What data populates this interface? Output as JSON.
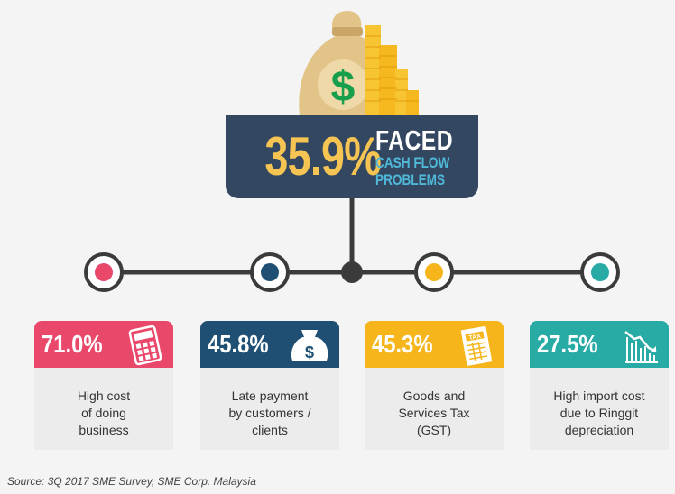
{
  "hero": {
    "percent": "35.9%",
    "title": "FACED",
    "subtitle_lines": [
      "CASH FLOW",
      "PROBLEMS"
    ]
  },
  "items": [
    {
      "percent": "71.0%",
      "lines": [
        "High cost",
        "of doing",
        "business"
      ],
      "color": "#e9486a",
      "icon": "calculator-icon"
    },
    {
      "percent": "45.8%",
      "lines": [
        "Late payment",
        "by customers /",
        "clients"
      ],
      "color": "#1f4f73",
      "icon": "money-bag-icon"
    },
    {
      "percent": "45.3%",
      "lines": [
        "Goods and",
        "Services Tax",
        "(GST)"
      ],
      "color": "#f5b51b",
      "icon": "tax-document-icon"
    },
    {
      "percent": "27.5%",
      "lines": [
        "High import cost",
        "due to Ringgit",
        "depreciation"
      ],
      "color": "#28aaa5",
      "icon": "declining-chart-icon"
    }
  ],
  "colors": {
    "navy": "#344760",
    "bag": "#e3c488",
    "coin": "#f7c531",
    "connector": "#3b3b3b"
  },
  "source": "Source: 3Q 2017 SME Survey, SME Corp. Malaysia"
}
